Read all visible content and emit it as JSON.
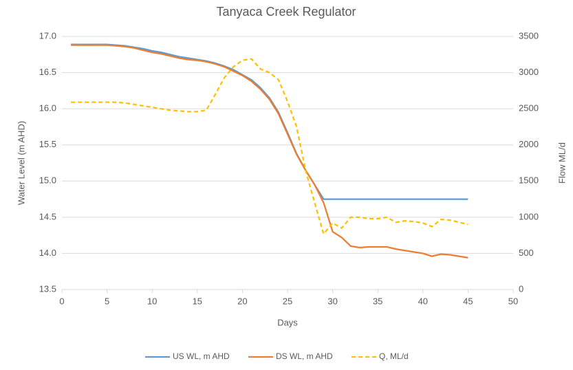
{
  "chart_data": {
    "type": "line",
    "title": "Tanyaca Creek Regulator",
    "xlabel": "Days",
    "ylabel": "Water Level (m AHD)",
    "y2label": "Flow ML/d",
    "x": [
      1,
      2,
      3,
      4,
      5,
      6,
      7,
      8,
      9,
      10,
      11,
      12,
      13,
      14,
      15,
      16,
      17,
      18,
      19,
      20,
      21,
      22,
      23,
      24,
      25,
      26,
      27,
      28,
      29,
      30,
      31,
      32,
      33,
      34,
      35,
      36,
      37,
      38,
      39,
      40,
      41,
      42,
      43,
      44,
      45
    ],
    "series": [
      {
        "name": "US WL, m AHD",
        "color": "#5b9bd5",
        "style": "solid",
        "values": [
          16.89,
          16.89,
          16.89,
          16.89,
          16.89,
          16.88,
          16.87,
          16.85,
          16.83,
          16.8,
          16.78,
          16.75,
          16.72,
          16.7,
          16.68,
          16.66,
          16.63,
          16.59,
          16.54,
          16.47,
          16.4,
          16.29,
          16.15,
          15.95,
          15.67,
          15.38,
          15.15,
          14.95,
          14.75,
          14.75,
          14.75,
          14.75,
          14.75,
          14.75,
          14.75,
          14.75,
          14.75,
          14.75,
          14.75,
          14.75,
          14.75,
          14.75,
          14.75,
          14.75,
          14.75
        ]
      },
      {
        "name": "DS WL, m AHD",
        "color": "#ed7d31",
        "style": "solid",
        "values": [
          16.88,
          16.88,
          16.88,
          16.88,
          16.88,
          16.87,
          16.86,
          16.84,
          16.81,
          16.78,
          16.76,
          16.73,
          16.7,
          16.68,
          16.67,
          16.65,
          16.62,
          16.58,
          16.52,
          16.46,
          16.38,
          16.27,
          16.13,
          15.93,
          15.65,
          15.37,
          15.15,
          14.95,
          14.7,
          14.3,
          14.22,
          14.1,
          14.08,
          14.09,
          14.09,
          14.09,
          14.06,
          14.04,
          14.02,
          14.0,
          13.96,
          13.99,
          13.98,
          13.96,
          13.94
        ]
      },
      {
        "name": "Q, ML/d",
        "color": "#ffc000",
        "style": "dashed",
        "axis": "y2",
        "values": [
          2590,
          2590,
          2590,
          2590,
          2590,
          2590,
          2580,
          2560,
          2540,
          2520,
          2500,
          2480,
          2470,
          2460,
          2460,
          2480,
          2700,
          2930,
          3080,
          3170,
          3190,
          3050,
          3000,
          2900,
          2600,
          2250,
          1650,
          1200,
          770,
          920,
          850,
          1000,
          1000,
          980,
          980,
          1000,
          930,
          950,
          940,
          920,
          870,
          970,
          960,
          930,
          900
        ]
      }
    ],
    "xlim": [
      0,
      50
    ],
    "xticks": [
      0,
      5,
      10,
      15,
      20,
      25,
      30,
      35,
      40,
      45,
      50
    ],
    "ylim": [
      13.5,
      17.0
    ],
    "yticks": [
      13.5,
      {
        "value": 14,
        "label": "14.0"
      },
      14.5,
      {
        "value": 15,
        "label": "15.0"
      },
      15.5,
      {
        "value": 16,
        "label": "16.0"
      },
      16.5,
      {
        "value": 17,
        "label": "17.0"
      }
    ],
    "y2lim": [
      0,
      3500
    ],
    "y2ticks": [
      0,
      500,
      1000,
      1500,
      2000,
      2500,
      3000,
      3500
    ],
    "grid": true,
    "legend": "bottom"
  }
}
